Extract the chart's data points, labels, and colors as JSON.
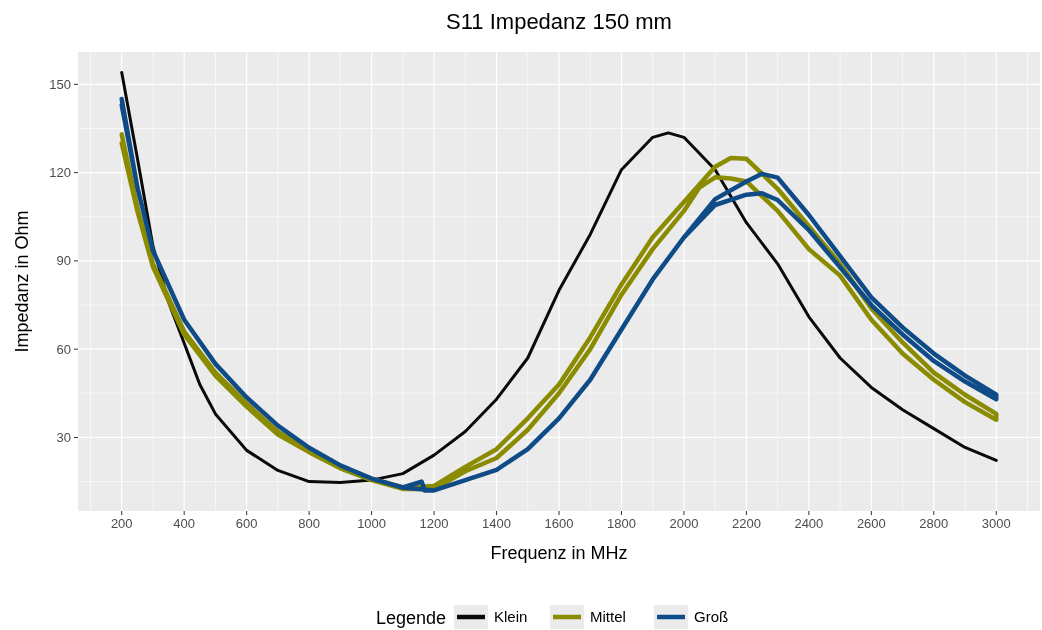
{
  "chart_data": {
    "type": "line",
    "title": "S11 Impedanz 150 mm",
    "xlabel": "Frequenz in MHz",
    "ylabel": "Impedanz in Ohm",
    "legend_title": "Legende",
    "legend": "bottom",
    "grid": true,
    "line_style": "solid",
    "marker": "none",
    "xlim": [
      60,
      3140
    ],
    "xticks": [
      200,
      400,
      600,
      800,
      1000,
      1200,
      1400,
      1600,
      1800,
      2000,
      2200,
      2400,
      2600,
      2800,
      3000
    ],
    "ylim": [
      5,
      161
    ],
    "yticks": [
      30,
      60,
      90,
      120,
      150
    ],
    "series": [
      {
        "name": "Klein",
        "color": "#0a0a0a",
        "x": [
          200,
          250,
          300,
          350,
          400,
          450,
          500,
          600,
          700,
          800,
          900,
          1000,
          1100,
          1200,
          1300,
          1400,
          1500,
          1600,
          1700,
          1800,
          1900,
          1950,
          2000,
          2100,
          2200,
          2300,
          2400,
          2500,
          2600,
          2700,
          2800,
          2900,
          3000
        ],
        "values": [
          154,
          125,
          95,
          76,
          62,
          48,
          38,
          25.6,
          18.8,
          15,
          14.7,
          15.5,
          17.7,
          24,
          32,
          43,
          57,
          80,
          99,
          121,
          132,
          133.5,
          132,
          121,
          103,
          89,
          71,
          57,
          47,
          39.4,
          33,
          26.6,
          22.2
        ]
      },
      {
        "name": "Mittel",
        "color": "#8b8b00",
        "x": [
          200,
          250,
          300,
          400,
          500,
          600,
          700,
          800,
          900,
          1000,
          1100,
          1200,
          1300,
          1400,
          1500,
          1600,
          1700,
          1800,
          1900,
          2000,
          2100,
          2150,
          2200,
          2300,
          2400,
          2500,
          2600,
          2700,
          2800,
          2900,
          3000,
          3000,
          2900,
          2800,
          2700,
          2600,
          2500,
          2400,
          2300,
          2200,
          2150,
          2100,
          2050,
          2000,
          1900,
          1800,
          1700,
          1600,
          1500,
          1400,
          1300,
          1200,
          1100,
          1000,
          900,
          800,
          700,
          600,
          500,
          400,
          300,
          250,
          200
        ],
        "values": [
          133,
          108,
          89,
          66,
          52,
          41.5,
          32,
          25.6,
          20,
          16,
          13,
          13.5,
          20,
          26,
          36.5,
          48,
          64,
          82,
          98,
          110,
          122,
          125,
          124.7,
          114.5,
          101.8,
          89,
          73.8,
          62.3,
          52,
          44.5,
          38,
          36,
          42,
          49.6,
          58.5,
          70,
          85,
          94,
          107,
          117,
          118,
          118.4,
          115,
          107,
          94,
          78.5,
          60,
          45,
          32.6,
          23,
          18.5,
          12.5,
          12.5,
          15.5,
          19.5,
          25,
          31,
          40.5,
          51,
          65,
          88,
          107,
          130
        ]
      },
      {
        "name": "Groß",
        "color": "#0f4c87",
        "x": [
          200,
          250,
          300,
          400,
          500,
          600,
          700,
          800,
          900,
          1000,
          1100,
          1200,
          1300,
          1400,
          1500,
          1600,
          1700,
          1800,
          1900,
          2000,
          2100,
          2200,
          2250,
          2300,
          2400,
          2500,
          2600,
          2700,
          2800,
          2900,
          3000,
          3000,
          2900,
          2800,
          2700,
          2600,
          2500,
          2400,
          2300,
          2250,
          2200,
          2100,
          2000,
          1900,
          1800,
          1700,
          1600,
          1500,
          1400,
          1300,
          1200,
          1170,
          1160,
          1100,
          1000,
          900,
          800,
          700,
          600,
          500,
          400,
          300,
          250,
          200
        ],
        "values": [
          145,
          115,
          93.5,
          70,
          55,
          43.6,
          34,
          26.5,
          20.5,
          16,
          13,
          12,
          15.5,
          19,
          26,
          36.5,
          49.6,
          66.7,
          83.7,
          98,
          111,
          117,
          119.6,
          118.3,
          105.6,
          91.6,
          77.6,
          67.4,
          58.5,
          51,
          44.5,
          43,
          49,
          56,
          65,
          75,
          87.8,
          100.5,
          110.7,
          113,
          112.5,
          109,
          98,
          83.7,
          66.7,
          49.6,
          36.5,
          26,
          19,
          15.5,
          12,
          12,
          15,
          13,
          16,
          20.5,
          26.5,
          34,
          43.6,
          55,
          70,
          93.5,
          115,
          143
        ]
      }
    ]
  }
}
